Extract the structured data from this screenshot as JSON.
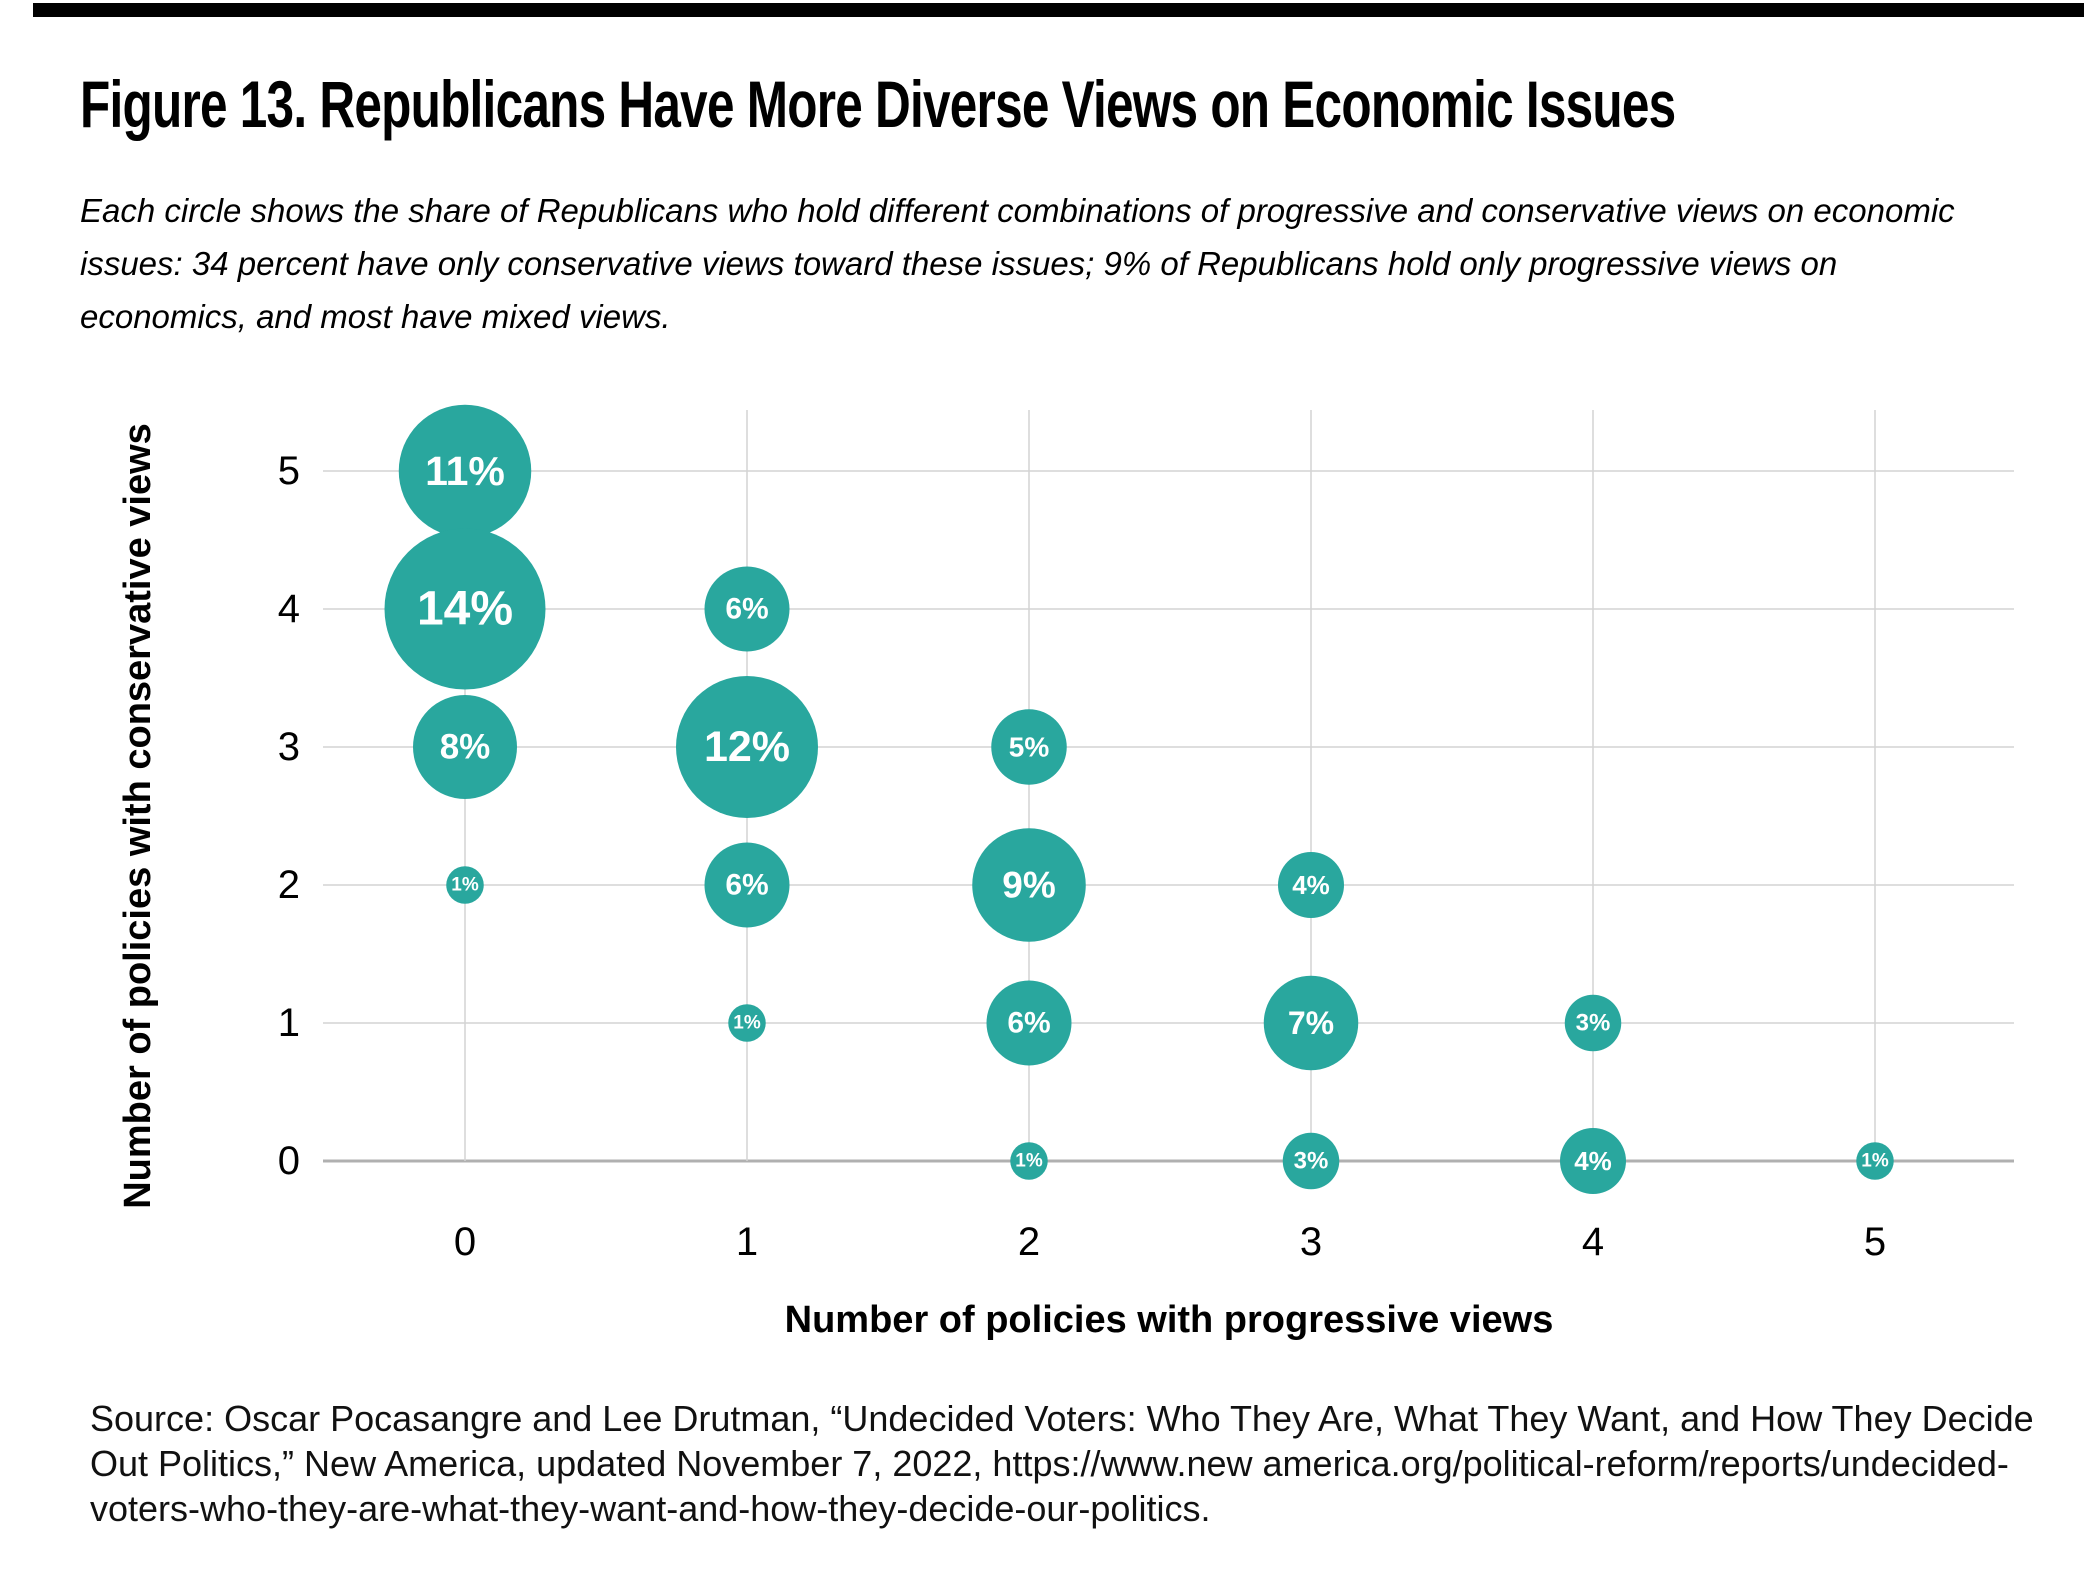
{
  "page": {
    "background": "#ffffff",
    "top_rule_color": "#000000"
  },
  "title": "Figure 13. Republicans Have More Diverse Views on Economic Issues",
  "description_lines": [
    "Each circle shows the share of Republicans who hold different combinations of progressive and conservative views on economic",
    "issues: 34 percent have only conservative views toward these issues; 9% of Republicans hold only progressive views on",
    "economics, and most have mixed views."
  ],
  "source_lines": [
    "Source: Oscar Pocasangre and Lee Drutman, “Undecided Voters: Who They Are, What They Want, and How They Decide",
    "Out Politics,” New America, updated November 7, 2022, https://www.new america.org/political-reform/reports/undecided-",
    "voters-who-they-are-what-they-want-and-how-they-decide-our-politics."
  ],
  "chart_data": {
    "type": "scatter",
    "subtype": "bubble",
    "xlabel": "Number of policies with progressive views",
    "ylabel": "Number of policies with conservative views",
    "x_ticks": [
      0,
      1,
      2,
      3,
      4,
      5
    ],
    "y_ticks": [
      0,
      1,
      2,
      3,
      4,
      5
    ],
    "xlim": [
      -0.5,
      5.5
    ],
    "ylim": [
      -0.5,
      5.5
    ],
    "grid": "on",
    "legend": "none",
    "bubble_color": "#29A79E",
    "bubble_label_color": "#ffffff",
    "gridline_color": "#d4d4d4",
    "baseline_color": "#b0b0b0",
    "tick_label_color": "#000000",
    "points": [
      {
        "x": 0,
        "y": 5,
        "value": 11,
        "label": "11%"
      },
      {
        "x": 0,
        "y": 4,
        "value": 14,
        "label": "14%"
      },
      {
        "x": 0,
        "y": 3,
        "value": 8,
        "label": "8%"
      },
      {
        "x": 0,
        "y": 2,
        "value": 1,
        "label": "1%"
      },
      {
        "x": 1,
        "y": 4,
        "value": 6,
        "label": "6%"
      },
      {
        "x": 1,
        "y": 3,
        "value": 12,
        "label": "12%"
      },
      {
        "x": 1,
        "y": 2,
        "value": 6,
        "label": "6%"
      },
      {
        "x": 1,
        "y": 1,
        "value": 1,
        "label": "1%"
      },
      {
        "x": 2,
        "y": 3,
        "value": 5,
        "label": "5%"
      },
      {
        "x": 2,
        "y": 2,
        "value": 9,
        "label": "9%"
      },
      {
        "x": 2,
        "y": 1,
        "value": 6,
        "label": "6%"
      },
      {
        "x": 2,
        "y": 0,
        "value": 1,
        "label": "1%"
      },
      {
        "x": 3,
        "y": 2,
        "value": 4,
        "label": "4%"
      },
      {
        "x": 3,
        "y": 1,
        "value": 7,
        "label": "7%"
      },
      {
        "x": 3,
        "y": 0,
        "value": 3,
        "label": "3%"
      },
      {
        "x": 4,
        "y": 1,
        "value": 3,
        "label": "3%"
      },
      {
        "x": 4,
        "y": 0,
        "value": 4,
        "label": "4%"
      },
      {
        "x": 5,
        "y": 0,
        "value": 1,
        "label": "1%"
      }
    ]
  }
}
